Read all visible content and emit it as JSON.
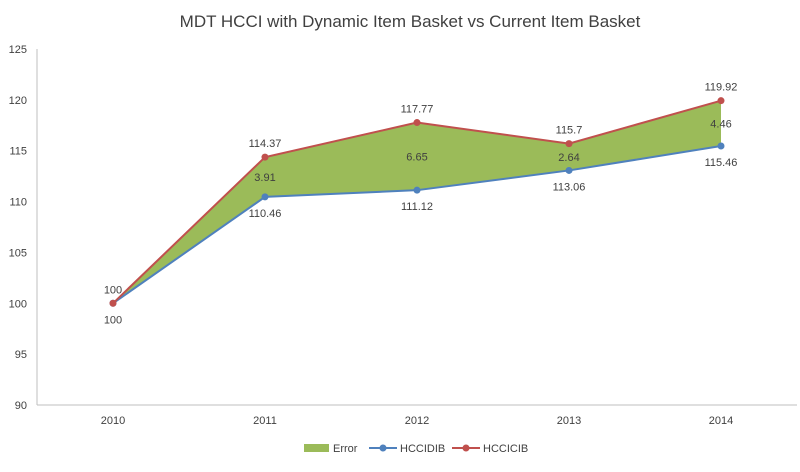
{
  "chart_data": {
    "type": "line",
    "title": "MDT HCCI with Dynamic Item Basket vs Current Item Basket",
    "categories": [
      "2010",
      "2011",
      "2012",
      "2013",
      "2014"
    ],
    "series": [
      {
        "name": "Error",
        "kind": "area",
        "values": [
          0,
          3.91,
          6.65,
          2.64,
          4.46
        ],
        "labels": [
          "",
          "3.91",
          "6.65",
          "2.64",
          "4.46"
        ],
        "color": "#9BBB59"
      },
      {
        "name": "HCCIDIB",
        "kind": "line",
        "values": [
          100,
          110.46,
          111.12,
          113.06,
          115.46
        ],
        "labels": [
          "100",
          "110.46",
          "111.12",
          "113.06",
          "115.46"
        ],
        "color": "#4F81BD"
      },
      {
        "name": "HCCICIB",
        "kind": "line",
        "values": [
          100,
          114.37,
          117.77,
          115.7,
          119.92
        ],
        "labels": [
          "100",
          "114.37",
          "117.77",
          "115.7",
          "119.92"
        ],
        "color": "#C0504D"
      }
    ],
    "ylim": [
      90,
      125
    ],
    "yticks": [
      "90",
      "95",
      "100",
      "105",
      "110",
      "115",
      "120",
      "125"
    ],
    "xlabel": "",
    "ylabel": "",
    "grid": false,
    "legend": "bottom"
  }
}
